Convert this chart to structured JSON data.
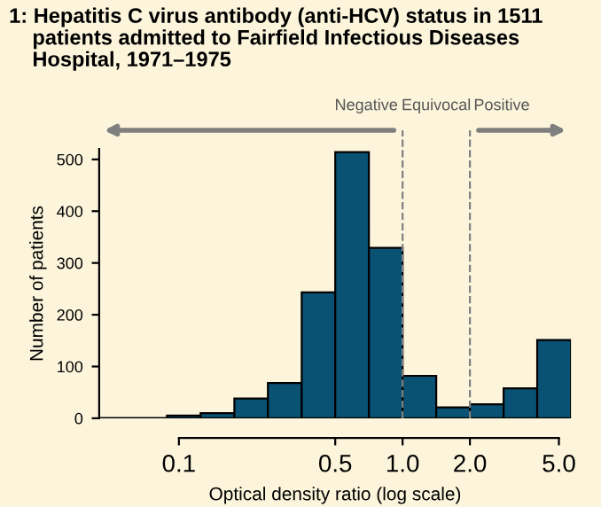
{
  "chart_data": {
    "type": "histogram",
    "title": "1: Hepatitis C virus antibody (anti-HCV) status in 1511\n    patients admitted to Fairfield Infectious Diseases\n    Hospital, 1971–1975",
    "xlabel": "Optical density ratio (log scale)",
    "ylabel": "Number of patients",
    "bins": [
      0.0884,
      0.125,
      0.177,
      0.25,
      0.354,
      0.5,
      0.707,
      1.0,
      1.414,
      2.0,
      2.83,
      4.0,
      5.66
    ],
    "values": [
      5,
      10,
      38,
      68,
      243,
      514,
      329,
      82,
      21,
      27,
      58,
      151
    ],
    "color": "#0a5274",
    "log": "x",
    "xlim": [
      0.044,
      5.66
    ],
    "xticks": [
      0.1,
      0.5,
      {
        "value": 1,
        "label": "1.0"
      },
      {
        "value": 2,
        "label": "2.0"
      },
      {
        "value": 5,
        "label": "5.0"
      }
    ],
    "ylim": [
      0,
      520
    ],
    "yticks": [
      0,
      100,
      200,
      300,
      400,
      500
    ],
    "ref_lines": [
      {
        "axis": "y",
        "value": 0,
        "color": "#000000",
        "line_style": "solid"
      },
      {
        "axis": "x",
        "value": 1.0,
        "color": "#808080",
        "line_style": "dashed"
      },
      {
        "axis": "x",
        "value": 2.0,
        "color": "#808080",
        "line_style": "dashed"
      }
    ],
    "annotations": [
      "Negative",
      "Equivocal",
      "Positive"
    ],
    "grid": false
  }
}
